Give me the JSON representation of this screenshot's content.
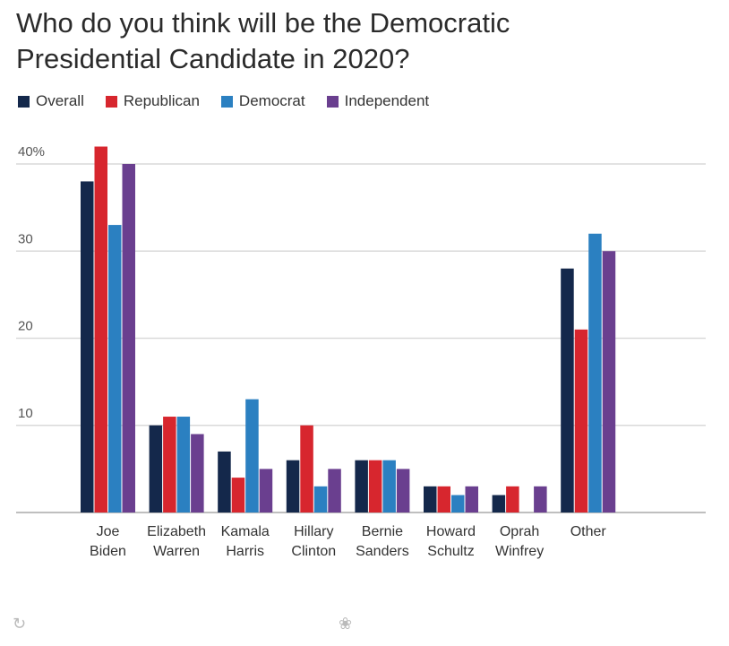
{
  "title_line1": "Who do you think will be the Democratic",
  "title_line2": "Presidential Candidate in 2020?",
  "colors": {
    "overall": "#14284b",
    "republican": "#d7262e",
    "democrat": "#2b80c1",
    "independent": "#6a3f8f"
  },
  "chart_data": {
    "type": "bar",
    "title": "Who do you think will be the Democratic Presidential Candidate in 2020?",
    "categories": [
      [
        "Joe",
        "Biden"
      ],
      [
        "Elizabeth",
        "Warren"
      ],
      [
        "Kamala",
        "Harris"
      ],
      [
        "Hillary",
        "Clinton"
      ],
      [
        "Bernie",
        "Sanders"
      ],
      [
        "Howard",
        "Schultz"
      ],
      [
        "Oprah",
        "Winfrey"
      ],
      [
        "Other"
      ]
    ],
    "series": [
      {
        "name": "Overall",
        "color": "#14284b",
        "values": [
          38,
          10,
          7,
          6,
          6,
          3,
          2,
          28
        ]
      },
      {
        "name": "Republican",
        "color": "#d7262e",
        "values": [
          42,
          11,
          4,
          10,
          6,
          3,
          3,
          21
        ]
      },
      {
        "name": "Democrat",
        "color": "#2b80c1",
        "values": [
          33,
          11,
          13,
          3,
          6,
          2,
          0,
          32
        ]
      },
      {
        "name": "Independent",
        "color": "#6a3f8f",
        "values": [
          40,
          9,
          5,
          5,
          5,
          3,
          3,
          30
        ]
      }
    ],
    "y_ticks": [
      {
        "value": 40,
        "label": "40%"
      },
      {
        "value": 30,
        "label": "30"
      },
      {
        "value": 20,
        "label": "20"
      },
      {
        "value": 10,
        "label": "10"
      }
    ],
    "ylim": [
      0,
      40
    ],
    "grid": true,
    "legend_position": "top-left",
    "xlabel": "",
    "ylabel": ""
  }
}
